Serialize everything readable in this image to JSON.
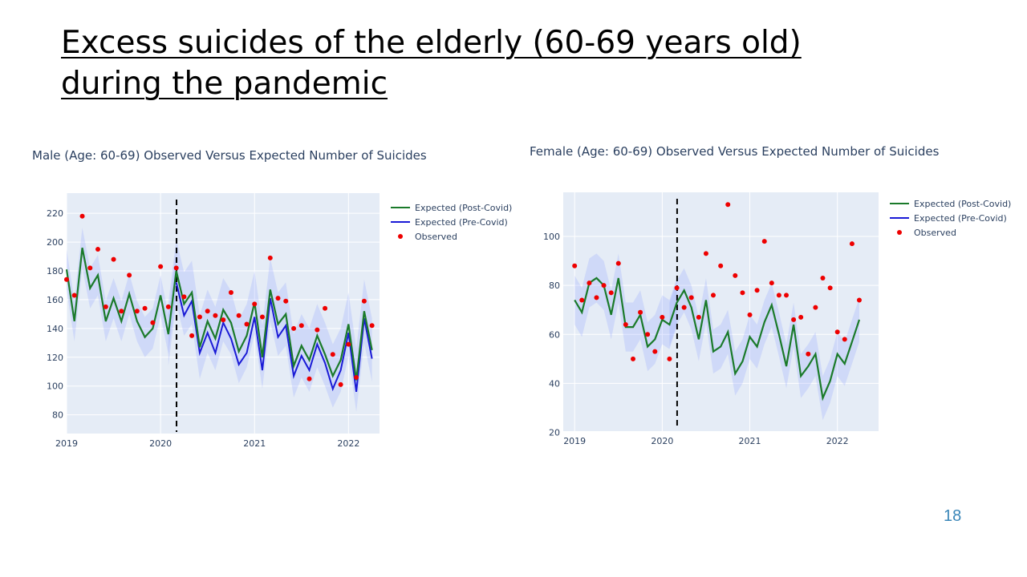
{
  "slide": {
    "title_line1": "Excess suicides of the elderly (60-69 years old)",
    "title_line2": "during the pandemic",
    "page_number": "18"
  },
  "chart_data": [
    {
      "type": "line",
      "title": "Male (Age: 60-69) Observed Versus Expected Number of Suicides",
      "xlabel": "",
      "ylabel": "",
      "x_ticks": [
        "2019",
        "2020",
        "2021",
        "2022"
      ],
      "y_ticks": [
        "80",
        "100",
        "120",
        "140",
        "160",
        "180",
        "200",
        "220"
      ],
      "xlim": [
        2019.0,
        2022.33
      ],
      "ylim": [
        67,
        234
      ],
      "covid_marker_x": 2020.17,
      "legend": [
        "Expected (Post-Covid)",
        "Expected (Pre-Covid)",
        "Observed"
      ],
      "series": [
        {
          "name": "Expected (Post-Covid)",
          "color": "#1a7a2a",
          "x": [
            2019.0,
            2019.083,
            2019.167,
            2019.25,
            2019.333,
            2019.417,
            2019.5,
            2019.583,
            2019.667,
            2019.75,
            2019.833,
            2019.917,
            2020.0,
            2020.083,
            2020.167,
            2020.25,
            2020.333,
            2020.417,
            2020.5,
            2020.583,
            2020.667,
            2020.75,
            2020.833,
            2020.917,
            2021.0,
            2021.083,
            2021.167,
            2021.25,
            2021.333,
            2021.417,
            2021.5,
            2021.583,
            2021.667,
            2021.75,
            2021.833,
            2021.917,
            2022.0,
            2022.083,
            2022.167,
            2022.25
          ],
          "values": [
            181,
            145,
            196,
            168,
            177,
            145,
            161,
            145,
            164,
            145,
            134,
            140,
            163,
            136,
            180,
            157,
            165,
            127,
            145,
            133,
            153,
            144,
            124,
            135,
            158,
            120,
            167,
            143,
            150,
            114,
            128,
            118,
            135,
            122,
            107,
            118,
            143,
            104,
            152,
            125
          ]
        },
        {
          "name": "Expected (Pre-Covid)",
          "color": "#1a1ad6",
          "x": [
            2020.167,
            2020.25,
            2020.333,
            2020.417,
            2020.5,
            2020.583,
            2020.667,
            2020.75,
            2020.833,
            2020.917,
            2021.0,
            2021.083,
            2021.167,
            2021.25,
            2021.333,
            2021.417,
            2021.5,
            2021.583,
            2021.667,
            2021.75,
            2021.833,
            2021.917,
            2022.0,
            2022.083,
            2022.167,
            2022.25
          ],
          "values": [
            172,
            149,
            159,
            123,
            137,
            123,
            144,
            133,
            115,
            123,
            148,
            111,
            161,
            134,
            142,
            107,
            121,
            111,
            129,
            116,
            98,
            111,
            137,
            96,
            147,
            119
          ]
        },
        {
          "name": "Observed",
          "color": "#ee0000",
          "x": [
            2019.0,
            2019.083,
            2019.167,
            2019.25,
            2019.333,
            2019.417,
            2019.5,
            2019.583,
            2019.667,
            2019.75,
            2019.833,
            2019.917,
            2020.0,
            2020.083,
            2020.167,
            2020.25,
            2020.333,
            2020.417,
            2020.5,
            2020.583,
            2020.667,
            2020.75,
            2020.833,
            2020.917,
            2021.0,
            2021.083,
            2021.167,
            2021.25,
            2021.333,
            2021.417,
            2021.5,
            2021.583,
            2021.667,
            2021.75,
            2021.833,
            2021.917,
            2022.0,
            2022.083,
            2022.167,
            2022.25
          ],
          "values": [
            174,
            163,
            218,
            182,
            195,
            155,
            188,
            152,
            177,
            152,
            154,
            144,
            183,
            155,
            182,
            162,
            135,
            148,
            152,
            149,
            146,
            165,
            149,
            143,
            157,
            148,
            189,
            161,
            159,
            140,
            142,
            105,
            139,
            154,
            122,
            101,
            129,
            106,
            159,
            142
          ]
        }
      ]
    },
    {
      "type": "line",
      "title": "Female (Age: 60-69) Observed Versus Expected Number of Suicides",
      "xlabel": "",
      "ylabel": "",
      "x_ticks": [
        "2019",
        "2020",
        "2021",
        "2022"
      ],
      "y_ticks": [
        "20",
        "40",
        "60",
        "80",
        "100"
      ],
      "xlim": [
        2018.87,
        2022.47
      ],
      "ylim": [
        20.5,
        118
      ],
      "covid_marker_x": 2020.17,
      "legend": [
        "Expected (Post-Covid)",
        "Expected (Pre-Covid)",
        "Observed"
      ],
      "series": [
        {
          "name": "Expected (Post-Covid)",
          "color": "#1a7a2a",
          "x": [
            2019.0,
            2019.083,
            2019.167,
            2019.25,
            2019.333,
            2019.417,
            2019.5,
            2019.583,
            2019.667,
            2019.75,
            2019.833,
            2019.917,
            2020.0,
            2020.083,
            2020.167,
            2020.25,
            2020.333,
            2020.417,
            2020.5,
            2020.583,
            2020.667,
            2020.75,
            2020.833,
            2020.917,
            2021.0,
            2021.083,
            2021.167,
            2021.25,
            2021.333,
            2021.417,
            2021.5,
            2021.583,
            2021.667,
            2021.75,
            2021.833,
            2021.917,
            2022.0,
            2022.083,
            2022.167,
            2022.25
          ],
          "values": [
            74,
            69,
            81,
            83,
            80,
            68,
            83,
            63,
            63,
            68,
            55,
            58,
            66,
            64,
            73,
            78,
            71,
            58,
            74,
            53,
            55,
            61,
            44,
            49,
            59,
            55,
            65,
            72,
            60,
            47,
            64,
            43,
            47,
            52,
            34,
            41,
            52,
            48,
            57,
            66
          ]
        },
        {
          "name": "Expected (Pre-Covid)",
          "color": "#1a1ad6",
          "x": [],
          "values": []
        },
        {
          "name": "Observed",
          "color": "#ee0000",
          "x": [
            2019.0,
            2019.083,
            2019.167,
            2019.25,
            2019.333,
            2019.417,
            2019.5,
            2019.583,
            2019.667,
            2019.75,
            2019.833,
            2019.917,
            2020.0,
            2020.083,
            2020.167,
            2020.25,
            2020.333,
            2020.417,
            2020.5,
            2020.583,
            2020.667,
            2020.75,
            2020.833,
            2020.917,
            2021.0,
            2021.083,
            2021.167,
            2021.25,
            2021.333,
            2021.417,
            2021.5,
            2021.583,
            2021.667,
            2021.75,
            2021.833,
            2021.917,
            2022.0,
            2022.083,
            2022.167,
            2022.25
          ],
          "values": [
            88,
            74,
            81,
            75,
            80,
            77,
            89,
            64,
            50,
            69,
            60,
            53,
            67,
            50,
            79,
            71,
            75,
            67,
            93,
            76,
            88,
            113,
            84,
            77,
            68,
            78,
            98,
            81,
            76,
            76,
            66,
            67,
            52,
            71,
            83,
            79,
            61,
            58,
            97,
            74
          ]
        }
      ]
    }
  ]
}
